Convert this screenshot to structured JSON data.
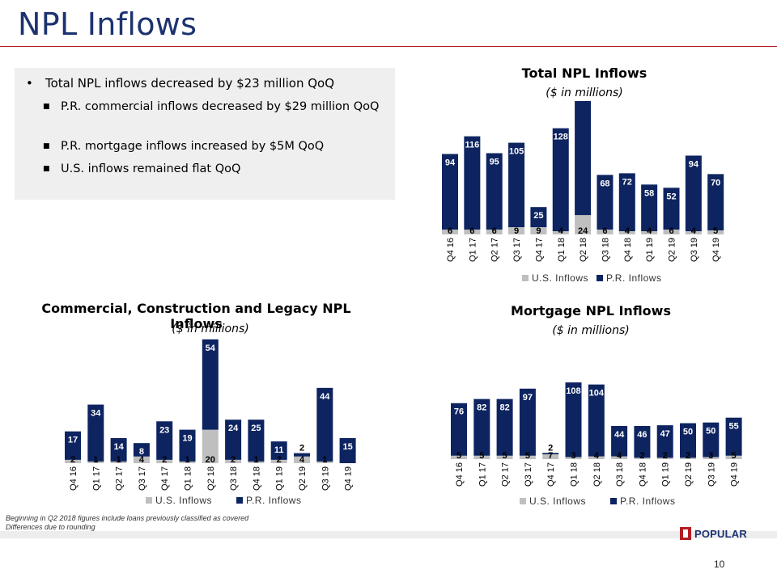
{
  "page": {
    "title": "NPL Inflows",
    "page_number": "10",
    "logo_text": "POPULAR",
    "footnotes": [
      "Beginning in Q2 2018 figures include loans previously classified as covered",
      "Differences due to rounding"
    ]
  },
  "summary": {
    "bullet": "Total NPL inflows decreased by $23 million QoQ",
    "sub_bullets": [
      "P.R. commercial inflows decreased by $29 million QoQ",
      "P.R. mortgage inflows increased by $5M QoQ",
      "U.S. inflows remained flat QoQ"
    ]
  },
  "colors": {
    "us": "#bfbfbf",
    "pr": "#0d2460",
    "title": "#1d3270",
    "rule": "#b31c24"
  },
  "chart_data": [
    {
      "id": "total",
      "type": "bar",
      "stacked": true,
      "title": "Total NPL Inflows",
      "subtitle": "($ in millions)",
      "categories": [
        "Q4 16",
        "Q1 17",
        "Q2 17",
        "Q3 17",
        "Q4 17",
        "Q1 18",
        "Q2 18",
        "Q3 18",
        "Q4 18",
        "Q1 19",
        "Q2 19",
        "Q3 19",
        "Q4 19"
      ],
      "series": [
        {
          "name": "U.S. Inflows",
          "values": [
            6,
            6,
            6,
            9,
            9,
            4,
            24,
            6,
            4,
            4,
            6,
            4,
            5
          ]
        },
        {
          "name": "P.R. Inflows",
          "values": [
            94,
            116,
            95,
            105,
            25,
            128,
            158,
            68,
            72,
            58,
            52,
            94,
            70
          ]
        }
      ],
      "legend": "bottom"
    },
    {
      "id": "commercial",
      "type": "bar",
      "stacked": true,
      "title": "Commercial, Construction and Legacy NPL Inflows",
      "subtitle": "($ in millions)",
      "categories": [
        "Q4 16",
        "Q1 17",
        "Q2 17",
        "Q3 17",
        "Q4 17",
        "Q1 18",
        "Q2 18",
        "Q3 18",
        "Q4 18",
        "Q1 19",
        "Q2 19",
        "Q3 19",
        "Q4 19"
      ],
      "series": [
        {
          "name": "U.S. Inflows",
          "values": [
            2,
            1,
            1,
            4,
            2,
            1,
            20,
            2,
            1,
            2,
            4,
            1,
            0
          ]
        },
        {
          "name": "P.R. Inflows",
          "values": [
            17,
            34,
            14,
            8,
            23,
            19,
            54,
            24,
            25,
            11,
            2,
            44,
            15
          ]
        }
      ],
      "legend": "bottom"
    },
    {
      "id": "mortgage",
      "type": "bar",
      "stacked": true,
      "title": "Mortgage NPL Inflows",
      "subtitle": "($ in millions)",
      "categories": [
        "Q4 16",
        "Q1 17",
        "Q2 17",
        "Q3 17",
        "Q4 17",
        "Q1 18",
        "Q2 18",
        "Q3 18",
        "Q4 18",
        "Q1 19",
        "Q2 19",
        "Q3 19",
        "Q4 19"
      ],
      "series": [
        {
          "name": "U.S. Inflows",
          "values": [
            5,
            5,
            5,
            5,
            7,
            3,
            4,
            4,
            2,
            2,
            2,
            3,
            5
          ]
        },
        {
          "name": "P.R. Inflows",
          "values": [
            76,
            82,
            82,
            97,
            2,
            108,
            104,
            44,
            46,
            47,
            50,
            50,
            55
          ]
        }
      ],
      "legend": "bottom"
    }
  ]
}
